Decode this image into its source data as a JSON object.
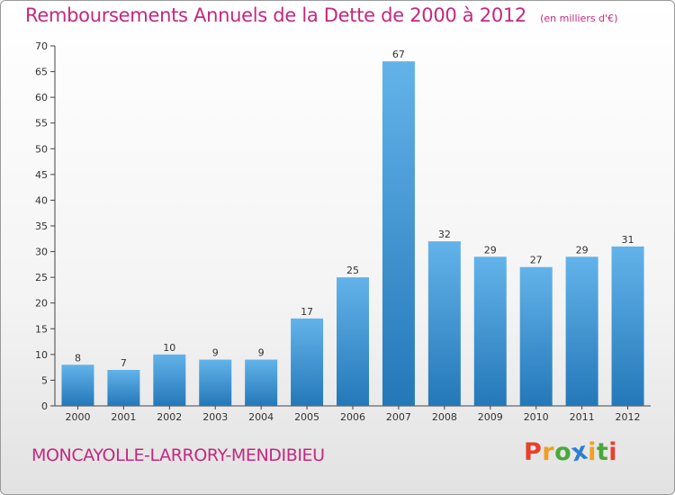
{
  "title": "Remboursements Annuels de la Dette de 2000 à 2012",
  "unit": "(en milliers d'€)",
  "commune": "MONCAYOLLE-LARRORY-MENDIBIEU",
  "logo": {
    "letters": [
      "P",
      "r",
      "o",
      "x",
      "i",
      "t",
      "i"
    ],
    "colors": [
      "#e8402a",
      "#f0a020",
      "#4aa83a",
      "#2f7fd0",
      "#f0a020",
      "#4aa83a",
      "#e8402a"
    ]
  },
  "colors": {
    "accent": "#c4287f",
    "bar_top": "#63b3ea",
    "bar_bottom": "#2478b8",
    "axis": "#444444"
  },
  "chart_data": {
    "type": "bar",
    "categories": [
      "2000",
      "2001",
      "2002",
      "2003",
      "2004",
      "2005",
      "2006",
      "2007",
      "2008",
      "2009",
      "2010",
      "2011",
      "2012"
    ],
    "values": [
      8,
      7,
      10,
      9,
      9,
      17,
      25,
      67,
      32,
      29,
      27,
      29,
      31
    ],
    "ylim": [
      0,
      70
    ],
    "yticks": [
      0,
      5,
      10,
      15,
      20,
      25,
      30,
      35,
      40,
      45,
      50,
      55,
      60,
      65,
      70
    ],
    "grid": false
  }
}
